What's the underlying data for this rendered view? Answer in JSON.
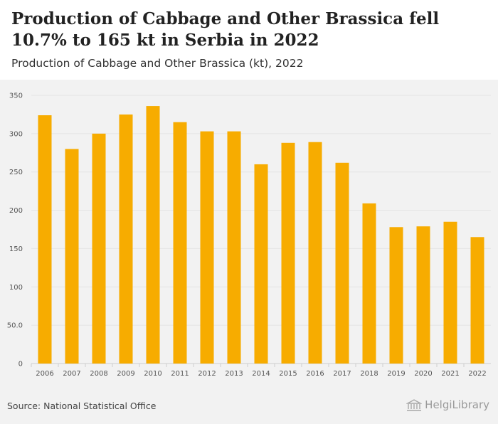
{
  "header": {
    "title": "Production of Cabbage and Other Brassica fell 10.7% to 165 kt in Serbia in 2022",
    "subtitle": "Production of Cabbage and Other Brassica (kt), 2022"
  },
  "footer": {
    "source": "Source: National Statistical Office",
    "brand": "HelgiLibrary"
  },
  "colors": {
    "bar": "#f7ac00",
    "grid": "#e4e4e4",
    "background": "#f2f2f2",
    "header_background": "#ffffff"
  },
  "chart_data": {
    "type": "bar",
    "title": "Production of Cabbage and Other Brassica fell 10.7% to 165 kt in Serbia in 2022",
    "subtitle": "Production of Cabbage and Other Brassica (kt), 2022",
    "xlabel": "",
    "ylabel": "",
    "categories": [
      "2006",
      "2007",
      "2008",
      "2009",
      "2010",
      "2011",
      "2012",
      "2013",
      "2014",
      "2015",
      "2016",
      "2017",
      "2018",
      "2019",
      "2020",
      "2021",
      "2022"
    ],
    "values": [
      324,
      280,
      300,
      325,
      336,
      315,
      303,
      303,
      260,
      288,
      289,
      262,
      209,
      178,
      179,
      185,
      165
    ],
    "ylim": [
      0,
      350
    ],
    "yticks": [
      0,
      50,
      100,
      150,
      200,
      250,
      300,
      350
    ],
    "ytick_labels": [
      "0",
      "50.0",
      "100",
      "150",
      "200",
      "250",
      "300",
      "350"
    ],
    "grid": true,
    "legend": "none"
  }
}
